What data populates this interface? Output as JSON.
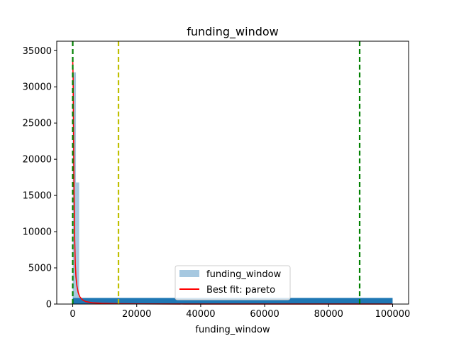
{
  "chart_data": {
    "type": "bar",
    "title": "funding_window",
    "xlabel": "funding_window",
    "ylabel": "",
    "xlim": [
      -5000,
      105000
    ],
    "ylim": [
      0,
      36300
    ],
    "xticks": [
      0,
      20000,
      40000,
      60000,
      80000,
      100000
    ],
    "yticks": [
      0,
      5000,
      10000,
      15000,
      20000,
      25000,
      30000,
      35000
    ],
    "grid": false,
    "legend_position": "lower-center",
    "histogram": {
      "name": "funding_window",
      "color": "#a6c8e0",
      "bins": [
        {
          "x0": 0,
          "x1": 1000,
          "value": 32000
        },
        {
          "x0": 1000,
          "x1": 2000,
          "value": 16800
        },
        {
          "x0": 2000,
          "x1": 3000,
          "value": 800
        }
      ]
    },
    "dense_bins": {
      "color": "#1f77b4",
      "x0": 0,
      "x1": 100000,
      "value": 850
    },
    "fit_curve": {
      "name": "Best fit: pareto",
      "color": "#ff0000",
      "points": [
        [
          0,
          33500
        ],
        [
          120,
          31000
        ],
        [
          250,
          24000
        ],
        [
          400,
          16000
        ],
        [
          600,
          9000
        ],
        [
          800,
          5500
        ],
        [
          1000,
          3800
        ],
        [
          1300,
          2500
        ],
        [
          1700,
          1600
        ],
        [
          2200,
          1000
        ],
        [
          3000,
          600
        ],
        [
          4000,
          350
        ],
        [
          6000,
          180
        ],
        [
          9000,
          100
        ],
        [
          14000,
          50
        ],
        [
          20000,
          25
        ],
        [
          35000,
          10
        ],
        [
          60000,
          3
        ],
        [
          100000,
          1
        ]
      ]
    },
    "vlines": [
      {
        "x": 0,
        "color": "#008000",
        "style": "dashed"
      },
      {
        "x": 14300,
        "color": "#bfbf00",
        "style": "dashed"
      },
      {
        "x": 89700,
        "color": "#008000",
        "style": "dashed"
      }
    ]
  }
}
